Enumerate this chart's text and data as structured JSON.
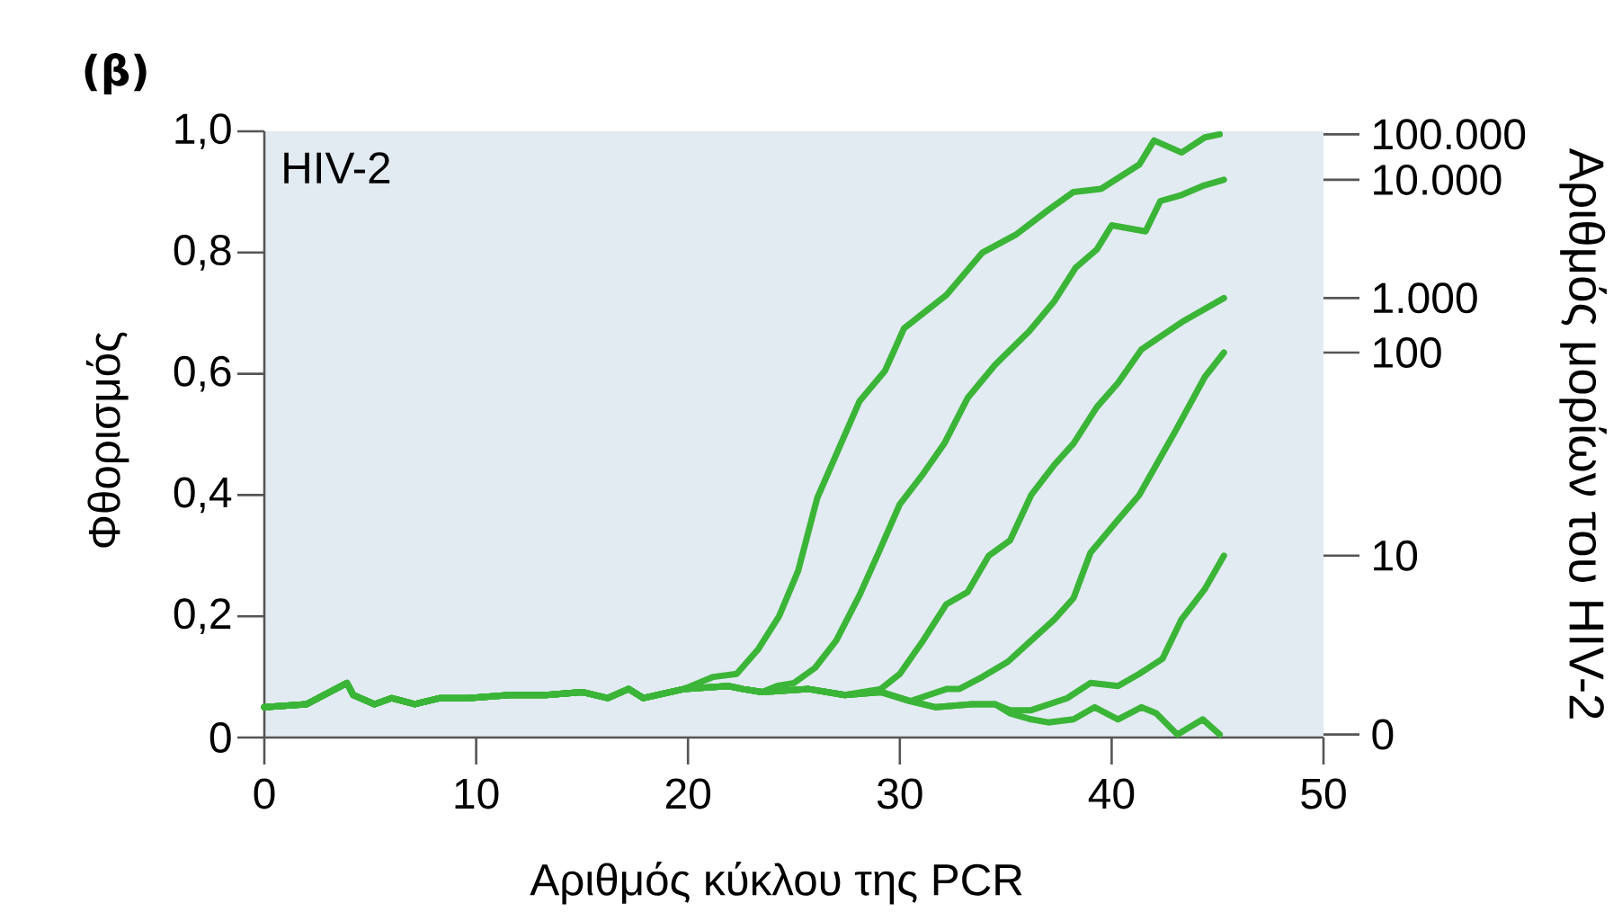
{
  "chart_data": {
    "type": "line",
    "title": "(β)",
    "xlabel": "Αριθμός κύκλου της PCR",
    "ylabel": "Φθορισμός",
    "y2label": "Αριθμός μορίων του HIV-2",
    "annotations": [
      "HIV-2"
    ],
    "xlim": [
      0,
      50
    ],
    "xticks": [
      0,
      10,
      20,
      30,
      40,
      50
    ],
    "ylim": [
      0,
      1
    ],
    "yticks": [
      {
        "value": 0,
        "label": "0"
      },
      {
        "value": 0.2,
        "label": "0,2"
      },
      {
        "value": 0.4,
        "label": "0,4"
      },
      {
        "value": 0.6,
        "label": "0,6"
      },
      {
        "value": 0.8,
        "label": "0,8"
      },
      {
        "value": 1,
        "label": "1,0"
      }
    ],
    "line_style": "solid",
    "series": [
      {
        "name": "100.000",
        "color": "#3bb537",
        "x": [
          0,
          2,
          3.9,
          4.2,
          5.2,
          6,
          7.1,
          8.3,
          9.6,
          11.6,
          13.3,
          15,
          16.2,
          17.2,
          17.9,
          19.8,
          21.2,
          22.3,
          23.3,
          24.3,
          25.2,
          26.1,
          27.1,
          28.1,
          29.3,
          30.2,
          32.2,
          33.9,
          35.5,
          37,
          38.2,
          39.5,
          41.3,
          42,
          43.3,
          44.4,
          45.1
        ],
        "values": [
          0.05,
          0.055,
          0.09,
          0.07,
          0.055,
          0.065,
          0.055,
          0.065,
          0.065,
          0.07,
          0.07,
          0.075,
          0.065,
          0.08,
          0.065,
          0.08,
          0.1,
          0.105,
          0.145,
          0.2,
          0.275,
          0.395,
          0.475,
          0.555,
          0.605,
          0.675,
          0.73,
          0.8,
          0.83,
          0.87,
          0.9,
          0.905,
          0.945,
          0.985,
          0.965,
          0.99,
          0.995
        ]
      },
      {
        "name": "10.000",
        "color": "#3bb537",
        "x": [
          0,
          2,
          3.9,
          4.2,
          5.2,
          6,
          7.1,
          8.3,
          9.6,
          11.6,
          13.3,
          15,
          16.2,
          17.2,
          17.9,
          19.8,
          21.9,
          22.6,
          23.5,
          24.2,
          25,
          26,
          27,
          28.1,
          29,
          30,
          31.1,
          32.1,
          33.2,
          34.5,
          36.1,
          37.3,
          38.3,
          39.3,
          40,
          41.6,
          42.3,
          43.3,
          44.3,
          45.3
        ],
        "values": [
          0.05,
          0.055,
          0.09,
          0.07,
          0.055,
          0.065,
          0.055,
          0.065,
          0.065,
          0.07,
          0.07,
          0.075,
          0.065,
          0.08,
          0.065,
          0.08,
          0.085,
          0.08,
          0.075,
          0.085,
          0.09,
          0.115,
          0.16,
          0.235,
          0.305,
          0.385,
          0.435,
          0.485,
          0.56,
          0.615,
          0.67,
          0.72,
          0.775,
          0.805,
          0.845,
          0.835,
          0.885,
          0.895,
          0.91,
          0.92
        ]
      },
      {
        "name": "1.000",
        "color": "#3bb537",
        "x": [
          0,
          2,
          3.9,
          4.2,
          5.2,
          6,
          7.1,
          8.3,
          9.6,
          11.6,
          13.3,
          15,
          16.2,
          17.2,
          17.9,
          19.8,
          21.9,
          22.6,
          23.5,
          25.7,
          27.4,
          29.1,
          30,
          31.1,
          32.2,
          33.2,
          34.2,
          35.2,
          36.2,
          37.3,
          38.2,
          39.3,
          40.3,
          41.4,
          43.3,
          45.3
        ],
        "values": [
          0.05,
          0.055,
          0.09,
          0.07,
          0.055,
          0.065,
          0.055,
          0.065,
          0.065,
          0.07,
          0.07,
          0.075,
          0.065,
          0.08,
          0.065,
          0.08,
          0.085,
          0.08,
          0.075,
          0.08,
          0.07,
          0.08,
          0.105,
          0.16,
          0.22,
          0.24,
          0.3,
          0.325,
          0.4,
          0.45,
          0.485,
          0.545,
          0.585,
          0.64,
          0.685,
          0.725
        ]
      },
      {
        "name": "100",
        "color": "#3bb537",
        "x": [
          0,
          2,
          3.9,
          4.2,
          5.2,
          6,
          7.1,
          8.3,
          9.6,
          11.6,
          13.3,
          15,
          16.2,
          17.2,
          17.9,
          19.8,
          21.9,
          22.6,
          23.5,
          25.7,
          27.4,
          29.1,
          30.5,
          32.2,
          32.8,
          33.9,
          35.1,
          36.2,
          37.3,
          38.2,
          39,
          40.2,
          41.3,
          43,
          44.4,
          45.3
        ],
        "values": [
          0.05,
          0.055,
          0.09,
          0.07,
          0.055,
          0.065,
          0.055,
          0.065,
          0.065,
          0.07,
          0.07,
          0.075,
          0.065,
          0.08,
          0.065,
          0.08,
          0.085,
          0.08,
          0.075,
          0.08,
          0.07,
          0.075,
          0.06,
          0.08,
          0.08,
          0.1,
          0.125,
          0.16,
          0.195,
          0.23,
          0.305,
          0.355,
          0.4,
          0.505,
          0.595,
          0.635
        ]
      },
      {
        "name": "10",
        "color": "#3bb537",
        "x": [
          0,
          2,
          3.9,
          4.2,
          5.2,
          6,
          7.1,
          8.3,
          9.6,
          11.6,
          13.3,
          15,
          16.2,
          17.2,
          17.9,
          19.8,
          21.9,
          22.6,
          23.5,
          25.7,
          27.4,
          29.1,
          30.5,
          31.7,
          33.4,
          34.5,
          35.2,
          36.2,
          37.9,
          39,
          40.3,
          41.3,
          42.4,
          43.3,
          44.4,
          45.3
        ],
        "values": [
          0.05,
          0.055,
          0.09,
          0.07,
          0.055,
          0.065,
          0.055,
          0.065,
          0.065,
          0.07,
          0.07,
          0.075,
          0.065,
          0.08,
          0.065,
          0.08,
          0.085,
          0.08,
          0.075,
          0.08,
          0.07,
          0.075,
          0.06,
          0.05,
          0.055,
          0.055,
          0.045,
          0.045,
          0.065,
          0.09,
          0.085,
          0.105,
          0.13,
          0.195,
          0.245,
          0.3
        ]
      },
      {
        "name": "0",
        "color": "#3bb537",
        "x": [
          0,
          2,
          3.9,
          4.2,
          5.2,
          6,
          7.1,
          8.3,
          9.6,
          11.6,
          13.3,
          15,
          16.2,
          17.2,
          17.9,
          19.8,
          21.9,
          22.6,
          23.5,
          25.7,
          27.4,
          29.1,
          30.5,
          31.7,
          33.4,
          34.5,
          35.2,
          36.2,
          37,
          38.2,
          39.2,
          40.3,
          41.4,
          42.1,
          43.1,
          44.3,
          45.1
        ],
        "values": [
          0.05,
          0.055,
          0.09,
          0.07,
          0.055,
          0.065,
          0.055,
          0.065,
          0.065,
          0.07,
          0.07,
          0.075,
          0.065,
          0.08,
          0.065,
          0.08,
          0.085,
          0.08,
          0.075,
          0.08,
          0.07,
          0.075,
          0.06,
          0.05,
          0.055,
          0.055,
          0.04,
          0.03,
          0.025,
          0.03,
          0.05,
          0.03,
          0.05,
          0.04,
          0.005,
          0.03,
          0.005
        ]
      }
    ]
  }
}
